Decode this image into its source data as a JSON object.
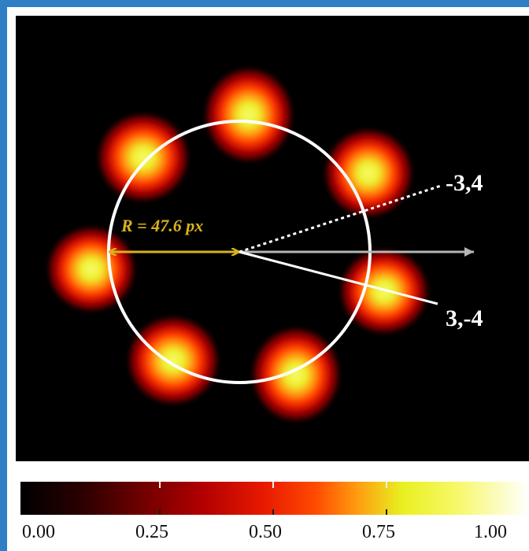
{
  "annotations": {
    "radius_label": "R = 47.6 px",
    "mode_upper": "-3,4",
    "mode_lower": "3,-4"
  },
  "colorbar": {
    "ticks": [
      "0.00",
      "0.25",
      "0.50",
      "0.75",
      "1.00"
    ],
    "colors": [
      "#000000",
      "#700000",
      "#e81a00",
      "#e8f020",
      "#ffffff"
    ]
  },
  "colors": {
    "border": "#2e7fc4",
    "circle": "#ffffff",
    "radius_arrow": "#d9b21c",
    "reference_arrow": "#b5b5b5"
  }
}
